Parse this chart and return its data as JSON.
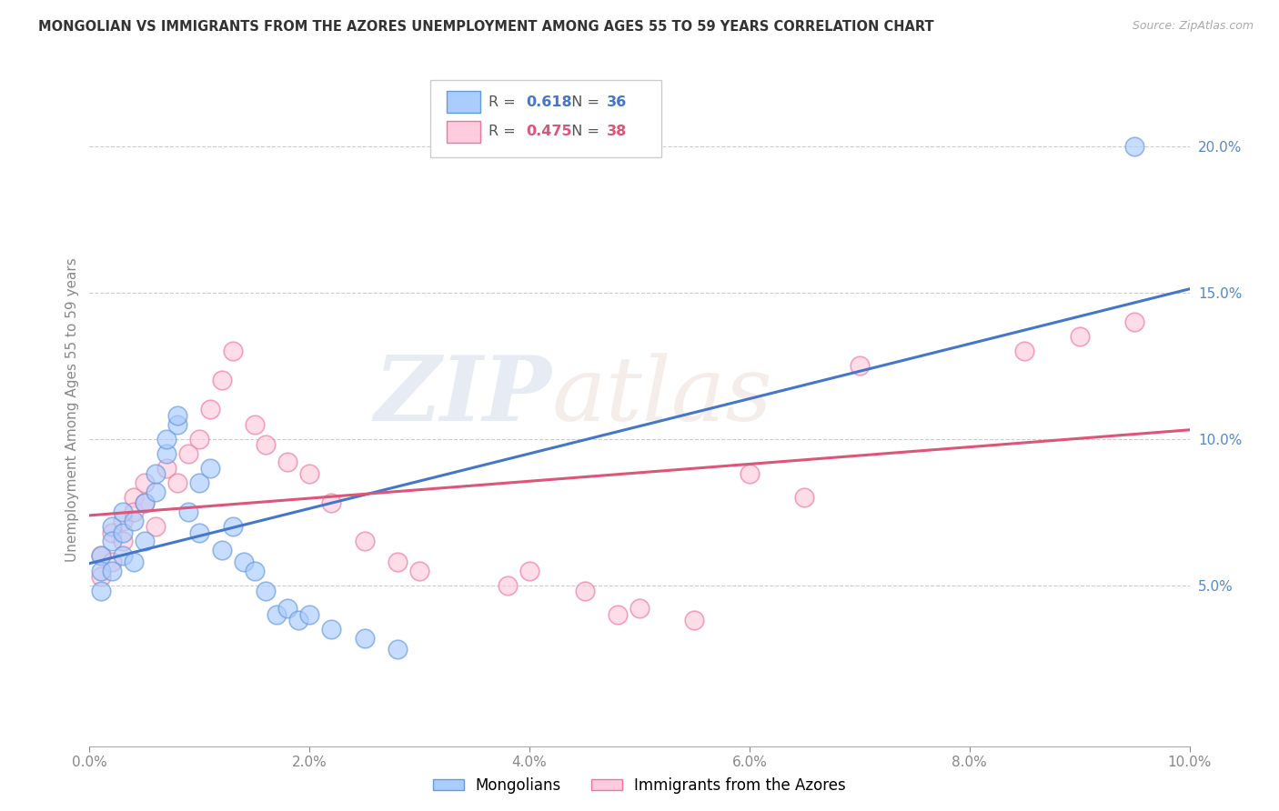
{
  "title": "MONGOLIAN VS IMMIGRANTS FROM THE AZORES UNEMPLOYMENT AMONG AGES 55 TO 59 YEARS CORRELATION CHART",
  "source": "Source: ZipAtlas.com",
  "ylabel": "Unemployment Among Ages 55 to 59 years",
  "watermark_zip": "ZIP",
  "watermark_atlas": "atlas",
  "legend_mongolians": "Mongolians",
  "legend_azores": "Immigrants from the Azores",
  "R_mongolian": 0.618,
  "N_mongolian": 36,
  "R_azores": 0.475,
  "N_azores": 38,
  "xlim": [
    0.0,
    0.1
  ],
  "ylim": [
    -0.005,
    0.225
  ],
  "xticks": [
    0.0,
    0.02,
    0.04,
    0.06,
    0.08,
    0.1
  ],
  "xtick_labels": [
    "0.0%",
    "2.0%",
    "4.0%",
    "6.0%",
    "8.0%",
    "10.0%"
  ],
  "yticks_right": [
    0.05,
    0.1,
    0.15,
    0.2
  ],
  "ytick_labels_right": [
    "5.0%",
    "10.0%",
    "15.0%",
    "20.0%"
  ],
  "color_mongolian_face": "#aaccff",
  "color_mongolian_edge": "#6699dd",
  "color_azores_face": "#ffccdd",
  "color_azores_edge": "#ee7799",
  "color_line_mongolian": "#4477cc",
  "color_line_azores": "#dd5577",
  "background": "#ffffff",
  "grid_color": "#cccccc",
  "mongolian_x": [
    0.001,
    0.001,
    0.001,
    0.002,
    0.002,
    0.002,
    0.003,
    0.003,
    0.003,
    0.004,
    0.004,
    0.005,
    0.005,
    0.006,
    0.006,
    0.007,
    0.007,
    0.008,
    0.008,
    0.009,
    0.01,
    0.01,
    0.011,
    0.012,
    0.013,
    0.014,
    0.015,
    0.016,
    0.017,
    0.018,
    0.019,
    0.02,
    0.022,
    0.025,
    0.028,
    0.095
  ],
  "mongolian_y": [
    0.06,
    0.055,
    0.048,
    0.07,
    0.065,
    0.055,
    0.075,
    0.068,
    0.06,
    0.072,
    0.058,
    0.078,
    0.065,
    0.082,
    0.088,
    0.095,
    0.1,
    0.105,
    0.108,
    0.075,
    0.085,
    0.068,
    0.09,
    0.062,
    0.07,
    0.058,
    0.055,
    0.048,
    0.04,
    0.042,
    0.038,
    0.04,
    0.035,
    0.032,
    0.028,
    0.2
  ],
  "azores_x": [
    0.001,
    0.001,
    0.002,
    0.002,
    0.003,
    0.003,
    0.004,
    0.004,
    0.005,
    0.005,
    0.006,
    0.007,
    0.008,
    0.009,
    0.01,
    0.011,
    0.012,
    0.013,
    0.015,
    0.016,
    0.018,
    0.02,
    0.022,
    0.025,
    0.028,
    0.03,
    0.038,
    0.04,
    0.045,
    0.048,
    0.05,
    0.055,
    0.06,
    0.065,
    0.07,
    0.085,
    0.09,
    0.095
  ],
  "azores_y": [
    0.06,
    0.053,
    0.068,
    0.058,
    0.072,
    0.065,
    0.08,
    0.075,
    0.085,
    0.078,
    0.07,
    0.09,
    0.085,
    0.095,
    0.1,
    0.11,
    0.12,
    0.13,
    0.105,
    0.098,
    0.092,
    0.088,
    0.078,
    0.065,
    0.058,
    0.055,
    0.05,
    0.055,
    0.048,
    0.04,
    0.042,
    0.038,
    0.088,
    0.08,
    0.125,
    0.13,
    0.135,
    0.14
  ]
}
